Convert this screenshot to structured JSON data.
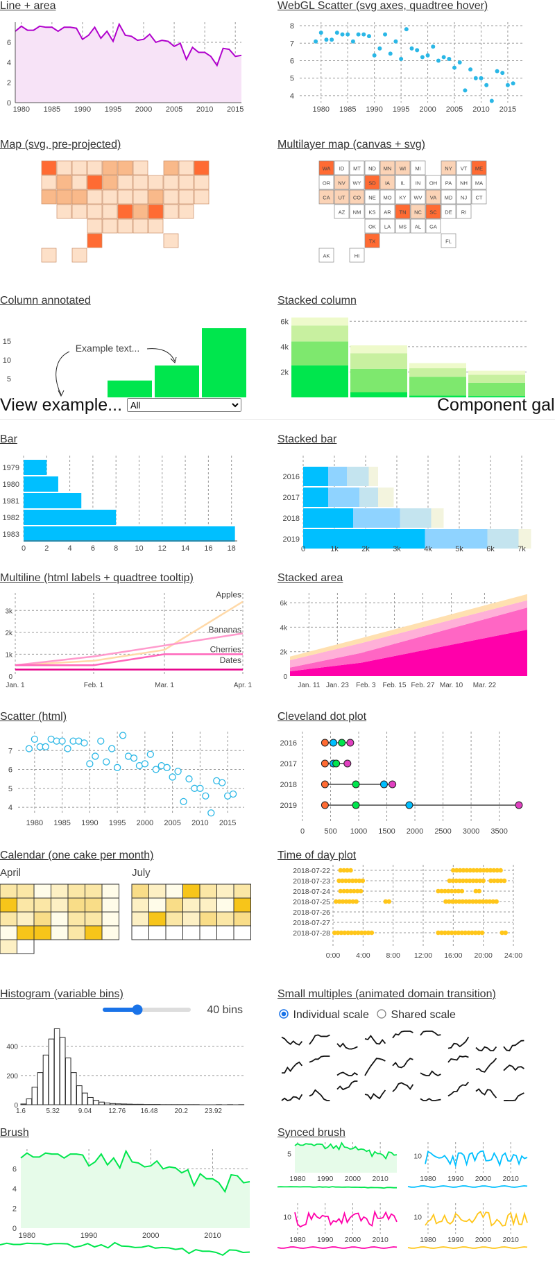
{
  "nav": {
    "view_label": "View example...",
    "select_value": "All",
    "gallery_title": "Component gallery"
  },
  "titles": {
    "line_area": "Line + area",
    "webgl_scatter": "WebGL Scatter (svg axes, quadtree hover)",
    "map_svg": "Map (svg, pre-projected)",
    "multilayer_map": "Multilayer map (canvas + svg)",
    "column_annotated": "Column annotated",
    "stacked_column": "Stacked column",
    "bar": "Bar",
    "stacked_bar": "Stacked bar",
    "multiline": "Multiline (html labels + quadtree tooltip)",
    "stacked_area": "Stacked area",
    "scatter_html": "Scatter (html)",
    "cleveland": "Cleveland dot plot",
    "calendar": "Calendar (one cake per month)",
    "time_of_day": "Time of day plot",
    "histogram": "Histogram (variable bins)",
    "small_multiples": "Small multiples (animated domain transition)",
    "brush": "Brush",
    "synced_brush": "Synced brush"
  },
  "colors": {
    "purple": "#b000cc",
    "cyan": "#00bfff",
    "scatter": "#2ab7e6",
    "green": "#00e64d",
    "orange": "#ff6b33",
    "pink": "#ff00aa",
    "yellow": "#ffc61a"
  },
  "series_years": [
    1979,
    1980,
    1981,
    1982,
    1983,
    1984,
    1985,
    1986,
    1987,
    1988,
    1989,
    1990,
    1991,
    1992,
    1993,
    1994,
    1995,
    1996,
    1997,
    1998,
    1999,
    2000,
    2001,
    2002,
    2003,
    2004,
    2005,
    2006,
    2007,
    2008,
    2009,
    2010,
    2011,
    2012,
    2013,
    2014,
    2015,
    2016
  ],
  "series_values": [
    7.1,
    7.6,
    7.2,
    7.2,
    7.6,
    7.5,
    7.5,
    7.1,
    7.5,
    7.5,
    7.4,
    6.3,
    6.7,
    7.5,
    6.4,
    7.1,
    6.1,
    7.8,
    6.7,
    6.6,
    6.2,
    6.3,
    6.8,
    6.0,
    6.2,
    6.1,
    5.6,
    5.9,
    4.3,
    5.5,
    5.0,
    5.0,
    4.6,
    3.7,
    5.4,
    5.3,
    4.6,
    4.7
  ],
  "line_area": {
    "xticks": [
      "1980",
      "1985",
      "1990",
      "1995",
      "2000",
      "2005",
      "2010",
      "2015"
    ],
    "yticks": [
      "0",
      "2",
      "4",
      "6"
    ]
  },
  "webgl_scatter": {
    "xticks": [
      "1980",
      "1985",
      "1990",
      "1995",
      "2000",
      "2005",
      "2010",
      "2015"
    ],
    "yticks": [
      "4",
      "5",
      "6",
      "7",
      "8"
    ]
  },
  "multilayer_map": {
    "labels": [
      "WA",
      "OR",
      "MT",
      "ND",
      "MN",
      "ME",
      "ID",
      "WY",
      "SD",
      "WI",
      "MI",
      "NY",
      "PA",
      "NV",
      "UT",
      "CO",
      "NE",
      "IA",
      "IL",
      "IN",
      "OH",
      "CA",
      "KS",
      "MO",
      "KY",
      "VA",
      "AZ",
      "NM",
      "OK",
      "AR",
      "TN",
      "NC",
      "MS",
      "AL",
      "GA",
      "SC",
      "TX",
      "LA",
      "FL",
      "AK",
      "HI"
    ]
  },
  "column_annotated": {
    "yticks": [
      "5",
      "10",
      "15"
    ],
    "values": [
      4.5,
      8.5,
      18.5
    ],
    "annotation": "Example text..."
  },
  "stacked_column": {
    "yticks": [
      "2k",
      "4k",
      "6k"
    ],
    "totals": [
      6.3,
      4.1,
      2.7,
      2.1
    ]
  },
  "bar": {
    "chart_data": {
      "type": "bar",
      "categories": [
        "1979",
        "1980",
        "1981",
        "1982",
        "1983"
      ],
      "values": [
        2,
        3,
        5,
        8,
        18.3
      ]
    },
    "xticks": [
      "0",
      "2",
      "4",
      "6",
      "8",
      "10",
      "12",
      "14",
      "16",
      "18"
    ]
  },
  "stacked_bar": {
    "chart_data": {
      "type": "bar",
      "categories": [
        "2016",
        "2017",
        "2018",
        "2019"
      ],
      "series": [
        {
          "values": [
            0.8,
            0.8,
            1.6,
            3.9
          ]
        },
        {
          "values": [
            0.6,
            1.0,
            1.5,
            2.0
          ]
        },
        {
          "values": [
            0.7,
            0.6,
            1.0,
            1.0
          ]
        },
        {
          "values": [
            0.3,
            0.5,
            0.4,
            0.4
          ]
        }
      ]
    },
    "xticks": [
      "0",
      "1k",
      "2k",
      "3k",
      "4k",
      "5k",
      "6k",
      "7k"
    ]
  },
  "multiline": {
    "chart_data": {
      "type": "line",
      "series": [
        {
          "name": "Apples",
          "color": "#ffd9a8"
        },
        {
          "name": "Bananas",
          "color": "#ff99cc"
        },
        {
          "name": "Cherries",
          "color": "#ff66bb"
        },
        {
          "name": "Dates",
          "color": "#e6008a"
        }
      ]
    },
    "xticks": [
      "Jan. 1",
      "Feb. 1",
      "Mar. 1",
      "Apr. 1"
    ],
    "yticks": [
      "0",
      "1k",
      "2k",
      "3k"
    ]
  },
  "stacked_area": {
    "xticks": [
      "Jan. 11",
      "Jan. 23",
      "Feb. 3",
      "Feb. 15",
      "Feb. 27",
      "Mar. 10",
      "Mar. 22"
    ],
    "yticks": [
      "0",
      "2k",
      "4k",
      "6k"
    ]
  },
  "scatter_html": {
    "xticks": [
      "1980",
      "1985",
      "1990",
      "1995",
      "2000",
      "2005",
      "2010",
      "2015"
    ],
    "yticks": [
      "4",
      "5",
      "6",
      "7"
    ]
  },
  "cleveland": {
    "chart_data": {
      "type": "scatter",
      "categories": [
        "2016",
        "2017",
        "2018",
        "2019"
      ],
      "series": [
        {
          "color": "#ff6b33",
          "values": [
            400,
            400,
            400,
            400
          ]
        },
        {
          "color": "#00bfff",
          "values": [
            550,
            550,
            1450,
            1900
          ]
        },
        {
          "color": "#00e64d",
          "values": [
            700,
            600,
            950,
            950
          ]
        },
        {
          "color": "#e040c0",
          "values": [
            850,
            800,
            1600,
            3850
          ]
        }
      ]
    },
    "xticks": [
      "0",
      "500",
      "1000",
      "1500",
      "2000",
      "2500",
      "3000",
      "3500"
    ]
  },
  "calendar": {
    "months": [
      "April",
      "July"
    ]
  },
  "time_of_day": {
    "days": [
      "2018-07-22",
      "2018-07-23",
      "2018-07-24",
      "2018-07-25",
      "2018-07-26",
      "2018-07-27",
      "2018-07-28"
    ],
    "xticks": [
      "0:00",
      "4:00",
      "8:00",
      "12:00",
      "16:00",
      "20:00",
      "24:00"
    ]
  },
  "histogram": {
    "bins_label": "40 bins",
    "slider_value": 40,
    "xticks": [
      "1.6",
      "5.32",
      "9.04",
      "12.76",
      "16.48",
      "20.2",
      "23.92"
    ],
    "yticks": [
      "0",
      "200",
      "400"
    ]
  },
  "small_multiples": {
    "opt_individual": "Individual scale",
    "opt_shared": "Shared scale",
    "selected": "Individual scale"
  },
  "brush": {
    "xticks": [
      "1980",
      "1990",
      "2000",
      "2010"
    ],
    "yticks": [
      "0",
      "2",
      "4",
      "6"
    ]
  },
  "synced_brush": {
    "xticks": [
      "1980",
      "1990",
      "2000",
      "2010"
    ],
    "charts": [
      {
        "color": "#00e64d",
        "yticks": [
          "5"
        ]
      },
      {
        "color": "#00bfff",
        "yticks": [
          "10"
        ]
      },
      {
        "color": "#ff00aa",
        "yticks": [
          "10"
        ]
      },
      {
        "color": "#ffc61a",
        "yticks": [
          "10"
        ]
      }
    ]
  }
}
